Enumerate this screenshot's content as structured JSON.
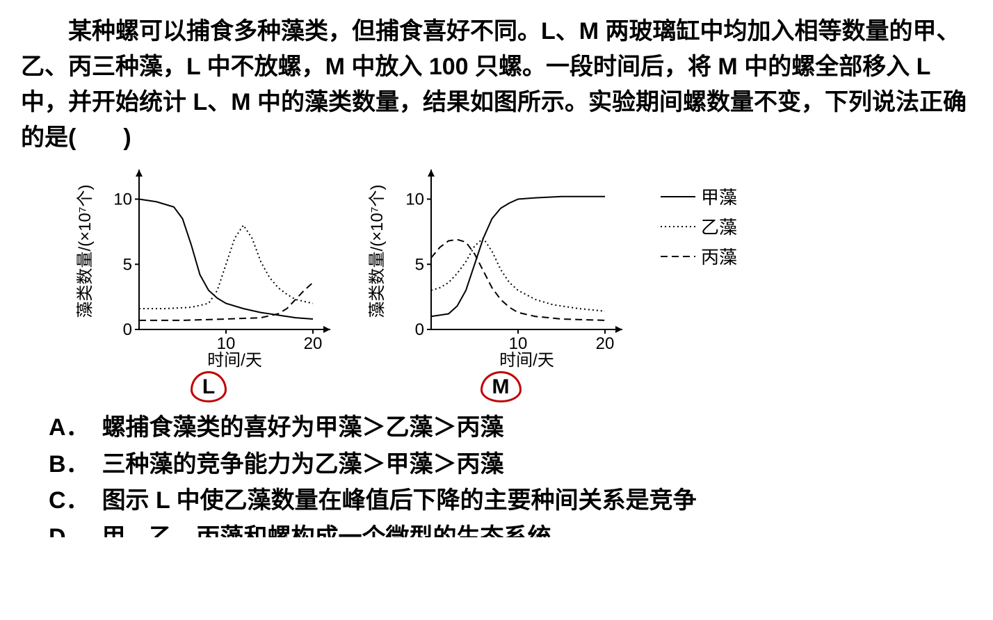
{
  "question": "某种螺可以捕食多种藻类，但捕食喜好不同。L、M 两玻璃缸中均加入相等数量的甲、乙、丙三种藻，L 中不放螺，M 中放入 100 只螺。一段时间后，将 M 中的螺全部移入 L 中，并开始统计 L、M 中的藻类数量，结果如图所示。实验期间螺数量不变，下列说法正确的是(　　)",
  "chartL": {
    "label": "L",
    "yAxisLabel": "藻类数量/(×10⁷个)",
    "xAxisLabel": "时间/天",
    "xlim": [
      0,
      22
    ],
    "ylim": [
      0,
      12
    ],
    "xticks": [
      10,
      20
    ],
    "yticks": [
      0,
      5,
      10
    ],
    "line_color": "#000000",
    "background": "#ffffff",
    "series": {
      "jia": {
        "style": "solid",
        "points": [
          [
            0,
            10
          ],
          [
            2,
            9.8
          ],
          [
            4,
            9.4
          ],
          [
            5,
            8.5
          ],
          [
            6,
            6.5
          ],
          [
            7,
            4.2
          ],
          [
            8,
            3.0
          ],
          [
            9,
            2.4
          ],
          [
            10,
            2.0
          ],
          [
            12,
            1.6
          ],
          [
            14,
            1.3
          ],
          [
            16,
            1.1
          ],
          [
            18,
            0.9
          ],
          [
            20,
            0.8
          ]
        ]
      },
      "yi": {
        "style": "dotted",
        "points": [
          [
            0,
            1.6
          ],
          [
            3,
            1.6
          ],
          [
            6,
            1.7
          ],
          [
            8,
            2.0
          ],
          [
            9,
            3.0
          ],
          [
            10,
            5.0
          ],
          [
            11,
            7.0
          ],
          [
            12,
            8.0
          ],
          [
            13,
            7.0
          ],
          [
            14,
            5.2
          ],
          [
            15,
            4.0
          ],
          [
            16,
            3.2
          ],
          [
            17,
            2.7
          ],
          [
            18,
            2.3
          ],
          [
            20,
            2.0
          ]
        ]
      },
      "bing": {
        "style": "dashed",
        "points": [
          [
            0,
            0.7
          ],
          [
            5,
            0.7
          ],
          [
            10,
            0.8
          ],
          [
            14,
            0.9
          ],
          [
            16,
            1.2
          ],
          [
            17,
            1.6
          ],
          [
            18,
            2.3
          ],
          [
            19,
            3.0
          ],
          [
            20,
            3.6
          ]
        ]
      }
    }
  },
  "chartM": {
    "label": "M",
    "yAxisLabel": "藻类数量/(×10⁷个)",
    "xAxisLabel": "时间/天",
    "xlim": [
      0,
      22
    ],
    "ylim": [
      0,
      12
    ],
    "xticks": [
      10,
      20
    ],
    "yticks": [
      0,
      5,
      10
    ],
    "line_color": "#000000",
    "background": "#ffffff",
    "series": {
      "jia": {
        "style": "solid",
        "points": [
          [
            0,
            1.0
          ],
          [
            2,
            1.2
          ],
          [
            3,
            1.8
          ],
          [
            4,
            3.0
          ],
          [
            5,
            5.0
          ],
          [
            6,
            7.0
          ],
          [
            7,
            8.5
          ],
          [
            8,
            9.3
          ],
          [
            9,
            9.7
          ],
          [
            10,
            10.0
          ],
          [
            12,
            10.1
          ],
          [
            15,
            10.2
          ],
          [
            20,
            10.2
          ]
        ]
      },
      "yi": {
        "style": "dotted",
        "points": [
          [
            0,
            3.0
          ],
          [
            1,
            3.2
          ],
          [
            2,
            3.6
          ],
          [
            3,
            4.3
          ],
          [
            4,
            5.2
          ],
          [
            5,
            6.4
          ],
          [
            6,
            7.0
          ],
          [
            7,
            6.0
          ],
          [
            8,
            4.6
          ],
          [
            9,
            3.6
          ],
          [
            10,
            3.0
          ],
          [
            12,
            2.3
          ],
          [
            14,
            1.9
          ],
          [
            17,
            1.6
          ],
          [
            20,
            1.4
          ]
        ]
      },
      "bing": {
        "style": "dashed",
        "points": [
          [
            0,
            5.5
          ],
          [
            1,
            6.3
          ],
          [
            2,
            6.8
          ],
          [
            3,
            6.9
          ],
          [
            4,
            6.7
          ],
          [
            5,
            5.8
          ],
          [
            6,
            4.5
          ],
          [
            7,
            3.2
          ],
          [
            8,
            2.3
          ],
          [
            9,
            1.7
          ],
          [
            10,
            1.3
          ],
          [
            12,
            1.0
          ],
          [
            15,
            0.8
          ],
          [
            20,
            0.7
          ]
        ]
      }
    }
  },
  "legend": {
    "jia": "甲藻",
    "yi": "乙藻",
    "bing": "丙藻"
  },
  "options": {
    "A": "螺捕食藻类的喜好为甲藻＞乙藻＞丙藻",
    "B": "三种藻的竞争能力为乙藻＞甲藻＞丙藻",
    "C": "图示 L 中使乙藻数量在峰值后下降的主要种间关系是竞争",
    "D": "甲、乙、丙藻和螺构成一个微型的生态系统"
  },
  "option_D_visible_prefix": "甲　乙　丙藻和螺构成一个微型的生态系统",
  "colors": {
    "text": "#000000",
    "circle": "#c00000",
    "background": "#ffffff"
  },
  "fontsizes": {
    "body": 34,
    "axis": 26,
    "tick": 26
  }
}
